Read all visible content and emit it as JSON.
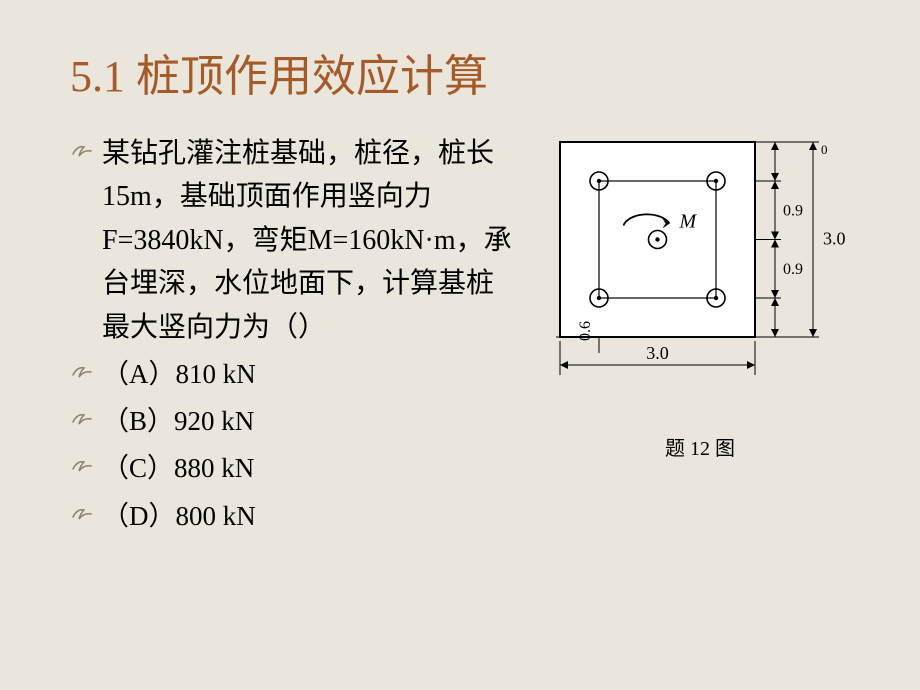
{
  "title": "5.1 桩顶作用效应计算",
  "problem": "某钻孔灌注桩基础，桩径，桩长15m，基础顶面作用竖向力F=3840kN，弯矩M=160kN·m，承台埋深，水位地面下，计算基桩最大竖向力为（）",
  "options": {
    "a": "（A）810 kN",
    "b": "（B）920 kN",
    "c": "（C）880 kN",
    "d": "（D）800 kN"
  },
  "figure": {
    "caption": "题 12 图",
    "moment_label": "M",
    "outer_w": 3.0,
    "outer_h": 3.0,
    "inner_off": 0.6,
    "pile_spacing": 0.9,
    "dim_w": "3.0",
    "dim_h": "3.0",
    "dim_06": "0.6",
    "dim_09a": "0.9",
    "dim_09b": "0.9",
    "stroke": "#000000",
    "bg": "#ffffff"
  },
  "colors": {
    "slide_bg": "#eae6db",
    "title": "#a55a2a",
    "bullet_fill": "#8a8365",
    "text": "#000000"
  },
  "fonts": {
    "title_size": 44,
    "body_size": 28,
    "caption_size": 20
  }
}
